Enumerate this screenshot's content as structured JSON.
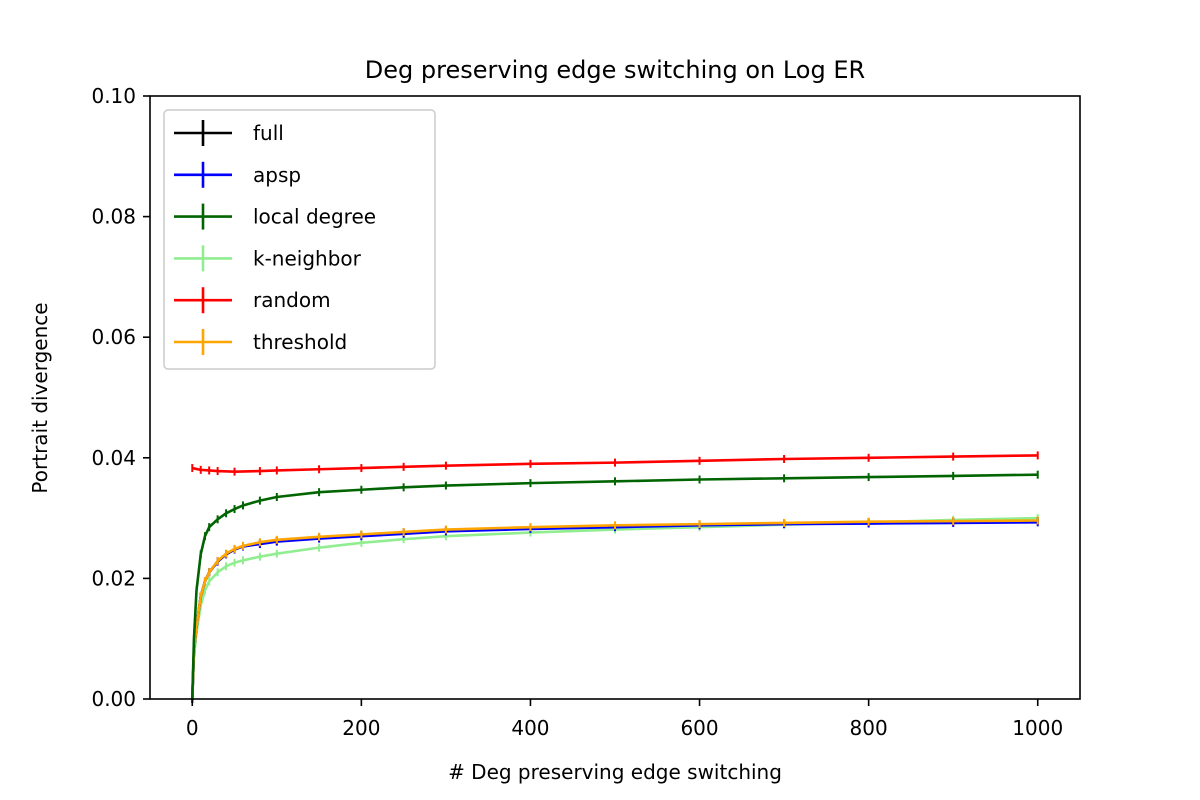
{
  "chart_data": {
    "type": "line",
    "title": "Deg preserving edge switching on Log ER",
    "xlabel": "# Deg preserving edge switching",
    "ylabel": "Portrait divergence",
    "xlim": [
      -50,
      1050
    ],
    "ylim": [
      0.0,
      0.1
    ],
    "xticks": [
      0,
      200,
      400,
      600,
      800,
      1000
    ],
    "xtick_labels": [
      "0",
      "200",
      "400",
      "600",
      "800",
      "1000"
    ],
    "yticks": [
      0.0,
      0.02,
      0.04,
      0.06,
      0.08,
      0.1
    ],
    "ytick_labels": [
      "0.00",
      "0.02",
      "0.04",
      "0.06",
      "0.08",
      "0.10"
    ],
    "grid": false,
    "legend_position": "top-left",
    "series": [
      {
        "name": "full",
        "color": "#000000",
        "x": [
          0,
          2,
          5,
          10,
          15,
          20,
          30,
          40,
          50,
          60,
          80,
          100,
          150,
          200,
          250,
          300,
          400,
          500,
          600,
          700,
          800,
          900,
          1000
        ],
        "y": [
          0.0,
          0.008,
          0.012,
          0.017,
          0.0195,
          0.021,
          0.0228,
          0.024,
          0.0248,
          0.0253,
          0.0258,
          0.0262,
          0.0268,
          0.0272,
          0.0276,
          0.028,
          0.0284,
          0.0287,
          0.0289,
          0.0291,
          0.0293,
          0.0294,
          0.0295
        ]
      },
      {
        "name": "apsp",
        "color": "#0000ff",
        "x": [
          0,
          2,
          5,
          10,
          15,
          20,
          30,
          40,
          50,
          60,
          80,
          100,
          150,
          200,
          250,
          300,
          400,
          500,
          600,
          700,
          800,
          900,
          1000
        ],
        "y": [
          0.0,
          0.008,
          0.012,
          0.017,
          0.0195,
          0.021,
          0.0228,
          0.024,
          0.0248,
          0.0253,
          0.0257,
          0.0261,
          0.0266,
          0.027,
          0.0274,
          0.0278,
          0.0282,
          0.0285,
          0.0288,
          0.029,
          0.0291,
          0.0292,
          0.0293
        ]
      },
      {
        "name": "local degree",
        "color": "#006400",
        "x": [
          0,
          2,
          5,
          10,
          15,
          20,
          30,
          40,
          50,
          60,
          80,
          100,
          150,
          200,
          250,
          300,
          400,
          500,
          600,
          700,
          800,
          900,
          1000
        ],
        "y": [
          0.0,
          0.01,
          0.018,
          0.024,
          0.027,
          0.0285,
          0.0298,
          0.0308,
          0.0315,
          0.0321,
          0.0329,
          0.0335,
          0.0343,
          0.0347,
          0.0351,
          0.0354,
          0.0358,
          0.0361,
          0.0364,
          0.0366,
          0.0368,
          0.037,
          0.0372
        ]
      },
      {
        "name": "k-neighbor",
        "color": "#90ee90",
        "x": [
          0,
          2,
          5,
          10,
          15,
          20,
          30,
          40,
          50,
          60,
          80,
          100,
          150,
          200,
          250,
          300,
          400,
          500,
          600,
          700,
          800,
          900,
          1000
        ],
        "y": [
          0.0,
          0.007,
          0.011,
          0.0155,
          0.018,
          0.0195,
          0.021,
          0.022,
          0.0226,
          0.023,
          0.0236,
          0.0241,
          0.0251,
          0.0259,
          0.0265,
          0.027,
          0.0276,
          0.0281,
          0.0285,
          0.0289,
          0.0293,
          0.0297,
          0.03
        ]
      },
      {
        "name": "random",
        "color": "#ff0000",
        "x": [
          0,
          10,
          20,
          30,
          50,
          80,
          100,
          150,
          200,
          250,
          300,
          400,
          500,
          600,
          700,
          800,
          900,
          1000
        ],
        "y": [
          0.0383,
          0.038,
          0.0379,
          0.0378,
          0.0377,
          0.0378,
          0.0379,
          0.0381,
          0.0383,
          0.0385,
          0.0387,
          0.039,
          0.0392,
          0.0395,
          0.0398,
          0.04,
          0.0402,
          0.0404
        ]
      },
      {
        "name": "threshold",
        "color": "#ffa500",
        "x": [
          0,
          2,
          5,
          10,
          15,
          20,
          30,
          40,
          50,
          60,
          80,
          100,
          150,
          200,
          250,
          300,
          400,
          500,
          600,
          700,
          800,
          900,
          1000
        ],
        "y": [
          0.0,
          0.008,
          0.012,
          0.017,
          0.0195,
          0.021,
          0.0229,
          0.0241,
          0.0249,
          0.0254,
          0.026,
          0.0264,
          0.0269,
          0.0273,
          0.0277,
          0.0281,
          0.0285,
          0.0288,
          0.029,
          0.0292,
          0.0294,
          0.0295,
          0.0296
        ]
      }
    ]
  }
}
